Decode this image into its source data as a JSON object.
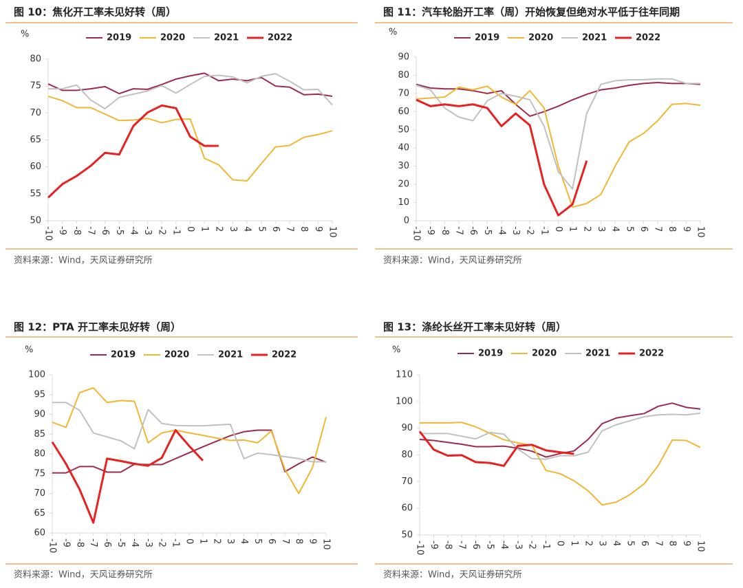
{
  "chart_data": [
    {
      "type": "line",
      "title": "图 10：焦化开工率未见好转（周）",
      "y_label": "%",
      "source": "资料来源：Wind，天风证券研究所",
      "x": [
        -10,
        -9,
        -8,
        -7,
        -6,
        -5,
        -4,
        -3,
        -2,
        -1,
        0,
        1,
        2,
        3,
        4,
        5,
        6,
        7,
        8,
        9,
        10
      ],
      "xlim": [
        -10,
        10
      ],
      "xticks": [
        -10,
        -9,
        -8,
        -7,
        -6,
        -5,
        -4,
        -3,
        -2,
        -1,
        0,
        1,
        2,
        3,
        4,
        5,
        6,
        7,
        8,
        9,
        10
      ],
      "ylim": [
        50,
        80
      ],
      "yticks": [
        50,
        55,
        60,
        65,
        70,
        75,
        80
      ],
      "series": [
        {
          "name": "2019",
          "color": "#9e2a4b",
          "values": [
            75.4,
            74.2,
            74.2,
            74.5,
            74.9,
            73.6,
            74.5,
            74.4,
            75.3,
            76.3,
            76.9,
            77.4,
            76.0,
            76.3,
            76.0,
            76.6,
            75.0,
            74.8,
            73.4,
            73.5,
            73.1
          ]
        },
        {
          "name": "2020",
          "color": "#f2b630",
          "values": [
            73.1,
            72.3,
            71.0,
            71.0,
            69.8,
            68.6,
            68.7,
            69.0,
            68.2,
            68.8,
            68.9,
            61.6,
            60.4,
            57.6,
            57.4,
            60.6,
            63.7,
            64.0,
            65.5,
            66.0,
            66.7
          ]
        },
        {
          "name": "2021",
          "color": "#c0c0c0",
          "values": [
            74.5,
            74.5,
            75.2,
            72.4,
            70.8,
            72.9,
            73.5,
            74.1,
            75.1,
            73.7,
            75.3,
            76.8,
            77.0,
            76.7,
            75.6,
            76.8,
            77.3,
            75.9,
            74.3,
            74.4,
            71.5
          ]
        },
        {
          "name": "2022",
          "color": "#e8201f",
          "values": [
            54.3,
            56.8,
            58.3,
            60.2,
            62.6,
            62.3,
            67.6,
            70.1,
            71.4,
            70.9,
            65.6,
            63.9,
            63.9,
            null,
            null,
            null,
            null,
            null,
            null,
            null,
            null
          ]
        }
      ]
    },
    {
      "type": "line",
      "title": "图 11：汽车轮胎开工率（周）开始恢复但绝对水平低于往年同期",
      "y_label": "%",
      "source": "资料来源：Wind，天风证券研究所",
      "x": [
        -10,
        -9,
        -8,
        -7,
        -6,
        -5,
        -4,
        -3,
        -2,
        -1,
        0,
        1,
        2,
        3,
        4,
        5,
        6,
        7,
        8,
        9,
        10
      ],
      "xlim": [
        -10,
        10
      ],
      "xticks": [
        -10,
        -9,
        -8,
        -7,
        -6,
        -5,
        -4,
        -3,
        -2,
        -1,
        0,
        1,
        2,
        3,
        4,
        5,
        6,
        7,
        8,
        9,
        10
      ],
      "ylim": [
        0,
        90
      ],
      "yticks": [
        0,
        10,
        20,
        30,
        40,
        50,
        60,
        70,
        80,
        90
      ],
      "series": [
        {
          "name": "2019",
          "color": "#9e2a4b",
          "values": [
            75,
            73,
            72.5,
            72.5,
            71.5,
            70,
            71.5,
            64,
            57.5,
            60,
            63,
            66.5,
            69.5,
            72,
            73,
            74.5,
            75.5,
            76,
            75.5,
            75.5,
            75
          ]
        },
        {
          "name": "2020",
          "color": "#f2b630",
          "values": [
            67,
            67.5,
            68,
            73.5,
            72,
            74,
            68,
            64,
            71.5,
            62,
            30,
            7.5,
            9.5,
            14.5,
            30,
            43.5,
            48,
            55,
            64,
            64.5,
            63.5
          ]
        },
        {
          "name": "2021",
          "color": "#c0c0c0",
          "values": [
            74.5,
            72,
            62,
            57,
            55,
            66,
            70,
            68.5,
            66.5,
            52,
            27,
            17.5,
            59,
            75,
            77,
            77.5,
            77.5,
            78,
            78,
            75.5,
            75.5
          ]
        },
        {
          "name": "2022",
          "color": "#e8201f",
          "values": [
            66.5,
            63,
            64,
            63,
            64,
            62,
            52,
            59,
            52.5,
            20,
            3,
            9,
            33,
            null,
            null,
            null,
            null,
            null,
            null,
            null,
            null
          ]
        }
      ]
    },
    {
      "type": "line",
      "title": "图 12：PTA 开工率未见好转（周）",
      "y_label": "%",
      "source": "资料来源：Wind，天风证券研究所",
      "x": [
        -10,
        -9,
        -8,
        -7,
        -6,
        -5,
        -4,
        -3,
        -2,
        -1,
        0,
        1,
        2,
        3,
        4,
        5,
        6,
        7,
        8,
        9,
        10
      ],
      "xlim": [
        -10,
        10
      ],
      "xticks": [
        -10,
        -9,
        -8,
        -7,
        -6,
        -5,
        -4,
        -3,
        -2,
        -1,
        0,
        1,
        2,
        3,
        4,
        5,
        6,
        7,
        8,
        9,
        10
      ],
      "ylim": [
        60,
        100
      ],
      "yticks": [
        60,
        65,
        70,
        75,
        80,
        85,
        90,
        95,
        100
      ],
      "series": [
        {
          "name": "2019",
          "color": "#9e2a4b",
          "values": [
            75.2,
            75.2,
            76.8,
            76.8,
            75.4,
            75.4,
            77.4,
            77.3,
            77.3,
            78.8,
            80.3,
            81.8,
            83.2,
            84.6,
            85.6,
            86,
            86,
            75.5,
            77.5,
            79.2,
            77.9
          ]
        },
        {
          "name": "2020",
          "color": "#f2b630",
          "values": [
            88,
            86.7,
            95.5,
            96.7,
            93,
            93.5,
            93.3,
            82.8,
            85.3,
            86,
            85.3,
            84.7,
            84,
            83.4,
            83.5,
            82.8,
            85.8,
            76,
            70,
            76.5,
            89.3
          ]
        },
        {
          "name": "2021",
          "color": "#c0c0c0",
          "values": [
            93,
            93,
            91,
            85.3,
            84.3,
            83.3,
            81.3,
            91.2,
            87.7,
            87.2,
            87.1,
            87.1,
            87.3,
            87.5,
            78.8,
            80.2,
            79.8,
            79.3,
            78.8,
            78,
            78
          ]
        },
        {
          "name": "2022",
          "color": "#e8201f",
          "values": [
            83,
            77.5,
            71,
            62.6,
            78.8,
            78.2,
            77.5,
            77,
            79,
            86,
            82,
            78.3,
            null,
            null,
            null,
            null,
            null,
            null,
            null,
            null,
            null
          ]
        }
      ]
    },
    {
      "type": "line",
      "title": "图 13：涤纶长丝开工率未见好转（周）",
      "y_label": "%",
      "source": "资料来源：Wind，天风证券研究所",
      "x": [
        -10,
        -9,
        -8,
        -7,
        -6,
        -5,
        -4,
        -3,
        -2,
        -1,
        0,
        1,
        2,
        3,
        4,
        5,
        6,
        7,
        8,
        9,
        10
      ],
      "xlim": [
        -10,
        10
      ],
      "xticks": [
        -10,
        -9,
        -8,
        -7,
        -6,
        -5,
        -4,
        -3,
        -2,
        -1,
        0,
        1,
        2,
        3,
        4,
        5,
        6,
        7,
        8,
        9,
        10
      ],
      "ylim": [
        50,
        110
      ],
      "yticks": [
        50,
        60,
        70,
        80,
        90,
        100,
        110
      ],
      "series": [
        {
          "name": "2019",
          "color": "#9e2a4b",
          "values": [
            85.8,
            85.4,
            84.7,
            84,
            83.1,
            83.1,
            83.3,
            82.5,
            81.4,
            79.2,
            80.5,
            81.5,
            85.8,
            91.7,
            93.8,
            94.7,
            95.5,
            98.2,
            99.4,
            97.8,
            97.2
          ]
        },
        {
          "name": "2020",
          "color": "#f2b630",
          "values": [
            92,
            92,
            92,
            92.2,
            90.5,
            88.1,
            85.7,
            84.5,
            83.6,
            74.2,
            73,
            70.3,
            66.6,
            61.3,
            62.3,
            65.2,
            69.2,
            76,
            85.6,
            85.4,
            82.8
          ]
        },
        {
          "name": "2021",
          "color": "#c0c0c0",
          "values": [
            88,
            88,
            88,
            87,
            86,
            88.4,
            87.8,
            82.2,
            78.6,
            78.4,
            79.7,
            79.7,
            81,
            89,
            91.3,
            92.8,
            94.3,
            95,
            95.2,
            95,
            95.6
          ]
        },
        {
          "name": "2022",
          "color": "#e8201f",
          "values": [
            88.8,
            82,
            79.7,
            79.9,
            77.3,
            77,
            75.9,
            83.4,
            83.8,
            81.7,
            81,
            80.4,
            null,
            null,
            null,
            null,
            null,
            null,
            null,
            null,
            null
          ]
        }
      ]
    }
  ]
}
